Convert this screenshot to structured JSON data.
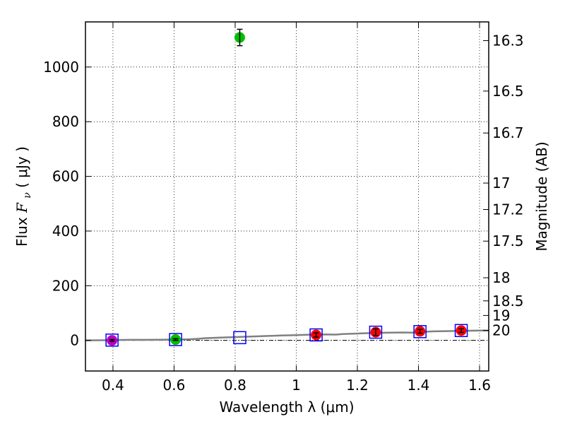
{
  "chart_data": {
    "type": "scatter",
    "xlabel": "Wavelength  λ (μm)",
    "ylabel": "Flux  F_ν  ( μJy )",
    "ylabel_parts": {
      "prefix": "Flux ",
      "var": "F",
      "sub": "ν",
      "suffix": " ( μJy )"
    },
    "y2label": "Magnitude (AB)",
    "xlim": [
      0.31,
      1.63
    ],
    "ylim": [
      -112,
      1165
    ],
    "grid": true,
    "x_ticks": [
      {
        "value": 0.4,
        "label": "0.4"
      },
      {
        "value": 0.6,
        "label": "0.6"
      },
      {
        "value": 0.8,
        "label": "0.8"
      },
      {
        "value": 1.0,
        "label": "1"
      },
      {
        "value": 1.2,
        "label": "1.2"
      },
      {
        "value": 1.4,
        "label": "1.4"
      },
      {
        "value": 1.6,
        "label": "1.6"
      }
    ],
    "y_ticks": [
      {
        "value": 0,
        "label": "0"
      },
      {
        "value": 200,
        "label": "200"
      },
      {
        "value": 400,
        "label": "400"
      },
      {
        "value": 600,
        "label": "600"
      },
      {
        "value": 800,
        "label": "800"
      },
      {
        "value": 1000,
        "label": "1000"
      }
    ],
    "mag_ticks": [
      {
        "mag": 16.3,
        "label": "16.3"
      },
      {
        "mag": 16.5,
        "label": "16.5"
      },
      {
        "mag": 16.7,
        "label": "16.7"
      },
      {
        "mag": 17,
        "label": "17"
      },
      {
        "mag": 17.2,
        "label": "17.2"
      },
      {
        "mag": 17.5,
        "label": "17.5"
      },
      {
        "mag": 18,
        "label": "18"
      },
      {
        "mag": 18.5,
        "label": "18.5"
      },
      {
        "mag": 19,
        "label": "19"
      },
      {
        "mag": 20,
        "label": "20"
      }
    ],
    "observed_points": [
      {
        "x": 0.397,
        "y": 0,
        "err": 3,
        "color": "#bf00bf"
      },
      {
        "x": 0.605,
        "y": 3,
        "err": 3,
        "color": "#00bf00"
      },
      {
        "x": 0.815,
        "y": 1108,
        "err": 30,
        "color": "#00bf00"
      },
      {
        "x": 1.065,
        "y": 20,
        "err": 8,
        "color": "#ff0000"
      },
      {
        "x": 1.26,
        "y": 30,
        "err": 12,
        "color": "#ff0000"
      },
      {
        "x": 1.405,
        "y": 33,
        "err": 7,
        "color": "#ff0000"
      },
      {
        "x": 1.54,
        "y": 36,
        "err": 7,
        "color": "#ff0000"
      }
    ],
    "model_points": [
      {
        "x": 0.397,
        "y": 1
      },
      {
        "x": 0.605,
        "y": 3
      },
      {
        "x": 0.815,
        "y": 10
      },
      {
        "x": 1.065,
        "y": 20
      },
      {
        "x": 1.26,
        "y": 30
      },
      {
        "x": 1.405,
        "y": 32
      },
      {
        "x": 1.54,
        "y": 36
      }
    ],
    "template_curve": {
      "x": [
        0.31,
        0.36,
        0.4,
        0.45,
        0.5,
        0.55,
        0.6,
        0.65,
        0.68,
        0.7,
        0.75,
        0.8,
        0.85,
        0.9,
        0.95,
        1.0,
        1.05,
        1.1,
        1.13,
        1.15,
        1.2,
        1.25,
        1.3,
        1.35,
        1.38,
        1.4,
        1.43,
        1.45,
        1.5,
        1.55,
        1.6,
        1.63
      ],
      "y": [
        0,
        0.5,
        1,
        2,
        2,
        2.5,
        3,
        4,
        6,
        8,
        10,
        12,
        14,
        16,
        18,
        19,
        21,
        22,
        21,
        23,
        25,
        27,
        28,
        29,
        28,
        31,
        32,
        33,
        34,
        35,
        36,
        36
      ]
    },
    "colors": {
      "model_square": "#0000ff",
      "template_line": "#808080",
      "error_bar": "#000000"
    }
  }
}
